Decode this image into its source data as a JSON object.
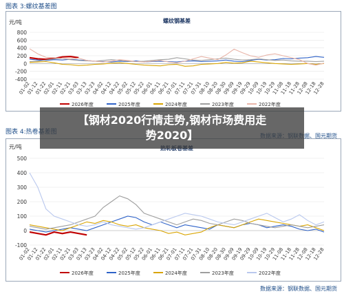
{
  "figure3": {
    "caption": "图表  3:螺纹基差图",
    "source": "数据来源：钢联数据、国元期货"
  },
  "figure4": {
    "caption": "图表  4:热卷基差图",
    "source": "数据来源：钢联数据、国元期货"
  },
  "overlay": {
    "line1": "【钢材2020行情走势,钢材市场费用走",
    "line2": "势2020】"
  },
  "chart_data": [
    {
      "type": "line",
      "title": "螺纹钢基差",
      "ylabel": "元/吨",
      "ylim": [
        -400,
        800
      ],
      "yticks": [
        -400,
        -200,
        0,
        200,
        400,
        600,
        800
      ],
      "categories": [
        "01-02",
        "01-12",
        "01-22",
        "02-01",
        "02-11",
        "02-21",
        "03-03",
        "03-13",
        "03-23",
        "04-02",
        "04-12",
        "04-22",
        "05-02",
        "05-12",
        "05-22",
        "06-01",
        "06-11",
        "06-21",
        "07-01",
        "07-11",
        "07-21",
        "07-31",
        "08-10",
        "08-20",
        "08-30",
        "09-09",
        "09-19",
        "09-29",
        "10-09",
        "10-19",
        "10-29",
        "11-08",
        "11-18",
        "11-28",
        "12-08",
        "12-18",
        "12-28"
      ],
      "series": [
        {
          "name": "2026年度",
          "color": "#c00000",
          "values": [
            150,
            120,
            110,
            130,
            170,
            180,
            150,
            null,
            null,
            null,
            null,
            null,
            null,
            null,
            null,
            null,
            null,
            null,
            null,
            null,
            null,
            null,
            null,
            null,
            null,
            null,
            null,
            null,
            null,
            null,
            null,
            null,
            null,
            null,
            null,
            null,
            null
          ]
        },
        {
          "name": "2025年度",
          "color": "#2e62c8",
          "values": [
            110,
            90,
            80,
            100,
            90,
            110,
            90,
            80,
            60,
            50,
            40,
            60,
            50,
            70,
            40,
            50,
            60,
            50,
            40,
            60,
            70,
            50,
            60,
            70,
            90,
            60,
            50,
            80,
            110,
            90,
            100,
            130,
            120,
            140,
            150,
            180,
            160
          ]
        },
        {
          "name": "2024年度",
          "color": "#d9a400",
          "values": [
            30,
            40,
            50,
            20,
            -20,
            -30,
            -50,
            -40,
            -20,
            -10,
            10,
            20,
            0,
            -20,
            -40,
            -50,
            -60,
            -30,
            -20,
            -70,
            -60,
            -20,
            -10,
            0,
            30,
            10,
            20,
            60,
            40,
            20,
            0,
            -10,
            -20,
            -10,
            0,
            -20,
            0
          ]
        },
        {
          "name": "2023年度",
          "color": "#9e9e9e",
          "values": [
            50,
            60,
            90,
            120,
            130,
            100,
            80,
            70,
            60,
            80,
            100,
            80,
            60,
            50,
            60,
            80,
            100,
            110,
            150,
            120,
            90,
            80,
            100,
            120,
            140,
            110,
            90,
            100,
            120,
            100,
            80,
            90,
            70,
            60,
            60,
            50,
            60
          ]
        },
        {
          "name": "2022年度",
          "color": "#e8b4a8",
          "values": [
            380,
            250,
            160,
            150,
            130,
            120,
            140,
            80,
            60,
            40,
            60,
            100,
            80,
            50,
            40,
            60,
            80,
            40,
            20,
            60,
            120,
            180,
            140,
            100,
            220,
            370,
            280,
            200,
            160,
            220,
            250,
            200,
            150,
            100,
            0,
            -40,
            10
          ]
        }
      ],
      "legend": "bottom"
    },
    {
      "type": "line",
      "title": "热轧板卷基差",
      "ylabel": "元/吨",
      "ylim": [
        -100,
        500
      ],
      "yticks": [
        -100,
        0,
        100,
        200,
        300,
        400,
        500
      ],
      "categories": [
        "01-02",
        "01-12",
        "01-22",
        "02-01",
        "02-11",
        "02-21",
        "03-03",
        "03-13",
        "03-23",
        "04-02",
        "04-12",
        "04-22",
        "05-02",
        "05-12",
        "05-22",
        "06-01",
        "06-11",
        "06-21",
        "07-01",
        "07-11",
        "07-21",
        "07-31",
        "08-10",
        "08-20",
        "08-30",
        "09-09",
        "09-19",
        "09-29",
        "10-09",
        "10-19",
        "10-29",
        "11-08",
        "11-18",
        "11-28",
        "12-08",
        "12-18",
        "12-28"
      ],
      "series": [
        {
          "name": "2026年度",
          "color": "#c00000",
          "values": [
            -10,
            -20,
            -30,
            -10,
            -20,
            -10,
            -20,
            -30,
            null,
            null,
            null,
            null,
            null,
            null,
            null,
            null,
            null,
            null,
            null,
            null,
            null,
            null,
            null,
            null,
            null,
            null,
            null,
            null,
            null,
            null,
            null,
            null,
            null,
            null,
            null,
            null,
            null
          ]
        },
        {
          "name": "2025年度",
          "color": "#2e62c8",
          "values": [
            10,
            0,
            -10,
            0,
            10,
            20,
            10,
            0,
            20,
            40,
            60,
            80,
            100,
            90,
            60,
            40,
            60,
            40,
            20,
            40,
            30,
            20,
            10,
            40,
            30,
            20,
            40,
            50,
            40,
            20,
            30,
            40,
            30,
            10,
            0,
            10,
            -10
          ]
        },
        {
          "name": "2024年度",
          "color": "#d9a400",
          "values": [
            40,
            30,
            20,
            10,
            0,
            20,
            40,
            60,
            50,
            70,
            60,
            40,
            30,
            40,
            20,
            10,
            0,
            -20,
            -10,
            -30,
            -20,
            -10,
            20,
            40,
            30,
            20,
            40,
            60,
            80,
            70,
            60,
            50,
            40,
            30,
            40,
            20,
            0
          ]
        },
        {
          "name": "2023年度",
          "color": "#9e9e9e",
          "values": [
            30,
            20,
            10,
            20,
            30,
            40,
            60,
            80,
            100,
            160,
            200,
            240,
            220,
            180,
            120,
            100,
            80,
            60,
            40,
            60,
            80,
            70,
            50,
            40,
            60,
            80,
            70,
            50,
            40,
            30,
            20,
            30,
            40,
            30,
            20,
            30,
            40
          ]
        },
        {
          "name": "2022年度",
          "color": "#b9c8ee",
          "values": [
            400,
            300,
            150,
            100,
            80,
            60,
            40,
            30,
            40,
            60,
            40,
            30,
            20,
            10,
            20,
            40,
            60,
            80,
            100,
            120,
            110,
            100,
            80,
            60,
            50,
            40,
            60,
            80,
            100,
            120,
            90,
            60,
            80,
            110,
            70,
            40,
            60
          ]
        }
      ],
      "legend": "bottom"
    }
  ]
}
